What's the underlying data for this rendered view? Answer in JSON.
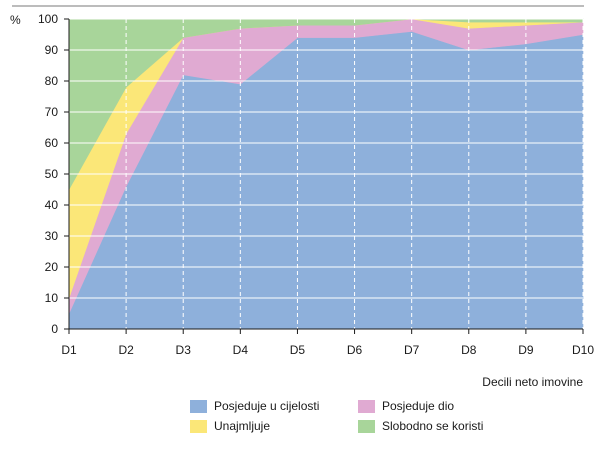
{
  "chart_data": {
    "type": "area",
    "stacked": true,
    "title": "",
    "ylabel": "%",
    "xlabel": "Decili neto imovine",
    "ylim": [
      0,
      100
    ],
    "yticks": [
      0,
      10,
      20,
      30,
      40,
      50,
      60,
      70,
      80,
      90,
      100
    ],
    "grid": true,
    "legend_position": "bottom",
    "categories": [
      "D1",
      "D2",
      "D3",
      "D4",
      "D5",
      "D6",
      "D7",
      "D8",
      "D9",
      "D10"
    ],
    "series": [
      {
        "name": "Posjeduje u cijelosti",
        "color": "#8eb0db",
        "values": [
          5,
          46,
          82,
          79,
          94,
          94,
          96,
          90,
          92,
          95
        ]
      },
      {
        "name": "Posjeduje dio",
        "color": "#e0aad2",
        "values": [
          5,
          17,
          12,
          18,
          4,
          4,
          4,
          7,
          6,
          4
        ]
      },
      {
        "name": "Unajmljuje",
        "color": "#fbe778",
        "values": [
          35,
          15,
          0,
          0,
          0,
          0,
          0,
          2,
          1,
          0
        ]
      },
      {
        "name": "Slobodno se koristi",
        "color": "#a8d59a",
        "values": [
          55,
          22,
          6,
          3,
          2,
          2,
          0,
          1,
          1,
          1
        ]
      }
    ]
  }
}
